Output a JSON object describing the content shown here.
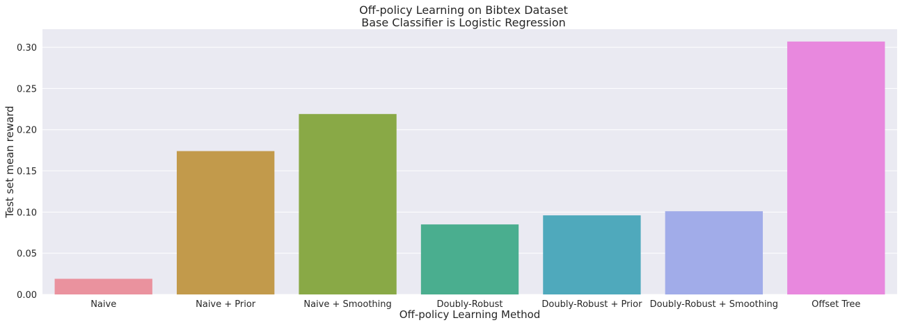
{
  "chart_data": {
    "type": "bar",
    "title": "Off-policy Learning on Bibtex Dataset",
    "subtitle": "Base Classifier is Logistic Regression",
    "xlabel": "Off-policy Learning Method",
    "ylabel": "Test set mean reward",
    "categories": [
      "Naive",
      "Naive + Prior",
      "Naive + Smoothing",
      "Doubly-Robust",
      "Doubly-Robust + Prior",
      "Doubly-Robust + Smoothing",
      "Offset Tree"
    ],
    "values": [
      0.019,
      0.174,
      0.219,
      0.085,
      0.096,
      0.101,
      0.307
    ],
    "colors": [
      "#ea929e",
      "#c29a4b",
      "#89a946",
      "#4aae8f",
      "#4fa9bc",
      "#a1ace9",
      "#e888de"
    ],
    "ylim": [
      0,
      0.322
    ],
    "yticks": [
      "0.00",
      "0.05",
      "0.10",
      "0.15",
      "0.20",
      "0.25",
      "0.30"
    ],
    "plot_background": "#eaeaf2",
    "grid": true
  }
}
